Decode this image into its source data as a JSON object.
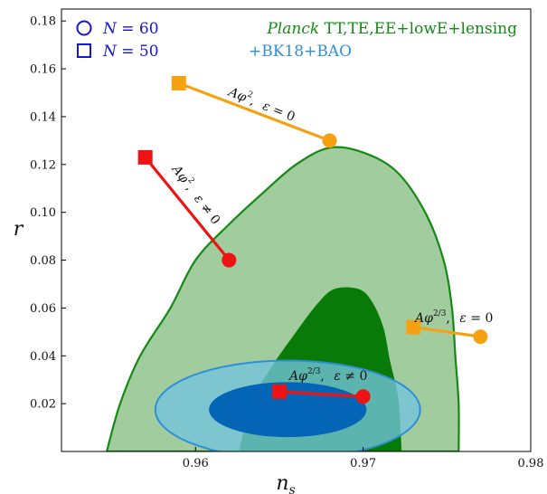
{
  "chart_data": {
    "type": "scatter",
    "xlabel": "n_s",
    "ylabel": "r",
    "xlim": [
      0.952,
      0.98
    ],
    "ylim": [
      0.0,
      0.185
    ],
    "x_ticks": [
      {
        "value": 0.96,
        "label": "0.96"
      },
      {
        "value": 0.97,
        "label": "0.97"
      },
      {
        "value": 0.98,
        "label": "0.98"
      }
    ],
    "y_ticks": [
      {
        "value": 0.02,
        "label": "0.02"
      },
      {
        "value": 0.04,
        "label": "0.04"
      },
      {
        "value": 0.06,
        "label": "0.06"
      },
      {
        "value": 0.08,
        "label": "0.08"
      },
      {
        "value": 0.1,
        "label": "0.10"
      },
      {
        "value": 0.12,
        "label": "0.12"
      },
      {
        "value": 0.14,
        "label": "0.14"
      },
      {
        "value": 0.16,
        "label": "0.16"
      },
      {
        "value": 0.18,
        "label": "0.18"
      }
    ],
    "legend_markers": [
      {
        "marker": "circle",
        "label": "N = 60"
      },
      {
        "marker": "square",
        "label": "N = 50"
      }
    ],
    "legend_color": "#1515d8",
    "datasets": [
      {
        "name_italic": "Planck",
        "name_rest": " TT,TE,EE+lowE+lensing",
        "color": "#138a13",
        "region_68": [
          [
            0.9626,
            0.0
          ],
          [
            0.9633,
            0.02
          ],
          [
            0.9645,
            0.035
          ],
          [
            0.966,
            0.05
          ],
          [
            0.9673,
            0.062
          ],
          [
            0.9683,
            0.068
          ],
          [
            0.9697,
            0.068
          ],
          [
            0.9705,
            0.063
          ],
          [
            0.9712,
            0.052
          ],
          [
            0.9716,
            0.038
          ],
          [
            0.9721,
            0.022
          ],
          [
            0.9723,
            0.0
          ]
        ],
        "region_95": [
          [
            0.9547,
            0.0
          ],
          [
            0.9555,
            0.02
          ],
          [
            0.9567,
            0.04
          ],
          [
            0.9585,
            0.06
          ],
          [
            0.96,
            0.08
          ],
          [
            0.962,
            0.095
          ],
          [
            0.964,
            0.108
          ],
          [
            0.966,
            0.12
          ],
          [
            0.968,
            0.127
          ],
          [
            0.97,
            0.125
          ],
          [
            0.972,
            0.117
          ],
          [
            0.9737,
            0.1
          ],
          [
            0.9748,
            0.08
          ],
          [
            0.9753,
            0.06
          ],
          [
            0.9755,
            0.04
          ],
          [
            0.9757,
            0.02
          ],
          [
            0.9757,
            0.0
          ]
        ],
        "fill_68": "#087a08",
        "fill_95": "#a1cc9d",
        "edge": "#138a13"
      },
      {
        "name": "+BK18+BAO",
        "color": "#2f8ed8",
        "center": [
          0.9655,
          0.0175
        ],
        "semi_axis_x_68": 0.0047,
        "semi_axis_y_68": 0.0115,
        "semi_axis_x_95": 0.0079,
        "semi_axis_y_95": 0.0205,
        "fill_68": "#0465b6",
        "fill_95": "#75c4de",
        "edge": "#2f8ed8"
      }
    ],
    "model_tracks": [
      {
        "label": "Aφ², ε = 0",
        "color": "#f6a112",
        "N50": [
          0.959,
          0.154
        ],
        "N60": [
          0.968,
          0.13
        ]
      },
      {
        "label": "Aφ², ε ≠ 0",
        "color": "#ee1313",
        "N50": [
          0.957,
          0.123
        ],
        "N60": [
          0.962,
          0.08
        ]
      },
      {
        "label": "Aφ^(2/3), ε = 0",
        "color": "#f6a112",
        "N50": [
          0.973,
          0.052
        ],
        "N60": [
          0.977,
          0.048
        ]
      },
      {
        "label": "Aφ^(2/3), ε ≠ 0",
        "color": "#ee1313",
        "N50": [
          0.965,
          0.025
        ],
        "N60": [
          0.97,
          0.023
        ]
      }
    ]
  }
}
